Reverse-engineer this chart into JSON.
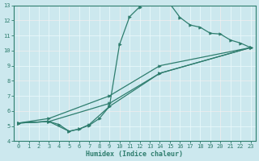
{
  "xlabel": "Humidex (Indice chaleur)",
  "ylabel": "",
  "xlim": [
    -0.5,
    23.5
  ],
  "ylim": [
    4,
    13
  ],
  "xticks": [
    0,
    1,
    2,
    3,
    4,
    5,
    6,
    7,
    8,
    9,
    10,
    11,
    12,
    13,
    14,
    15,
    16,
    17,
    18,
    19,
    20,
    21,
    22,
    23
  ],
  "yticks": [
    4,
    5,
    6,
    7,
    8,
    9,
    10,
    11,
    12,
    13
  ],
  "bg_color": "#cce8ee",
  "line_color": "#2e7d6e",
  "grid_color_white": "#e8f8fa",
  "grid_color_red": "#e8a0a0",
  "lines": [
    {
      "x": [
        0,
        3,
        9,
        14,
        23
      ],
      "y": [
        5.2,
        5.3,
        6.5,
        8.5,
        10.2
      ]
    },
    {
      "x": [
        0,
        3,
        9,
        14,
        23
      ],
      "y": [
        5.2,
        5.5,
        7.0,
        9.0,
        10.2
      ]
    },
    {
      "x": [
        0,
        3,
        5,
        6,
        7,
        9,
        10,
        11,
        12,
        13,
        14,
        15,
        16,
        17,
        18,
        19,
        20,
        21,
        22,
        23
      ],
      "y": [
        5.2,
        5.3,
        4.65,
        4.8,
        5.1,
        6.3,
        10.4,
        12.25,
        12.9,
        13.15,
        13.2,
        13.1,
        12.2,
        11.7,
        11.55,
        11.15,
        11.1,
        10.7,
        10.5,
        10.2
      ]
    },
    {
      "x": [
        0,
        3,
        4,
        5,
        6,
        7,
        8,
        9,
        14,
        23
      ],
      "y": [
        5.2,
        5.3,
        5.1,
        4.65,
        4.8,
        5.05,
        5.5,
        6.3,
        8.5,
        10.2
      ]
    }
  ]
}
